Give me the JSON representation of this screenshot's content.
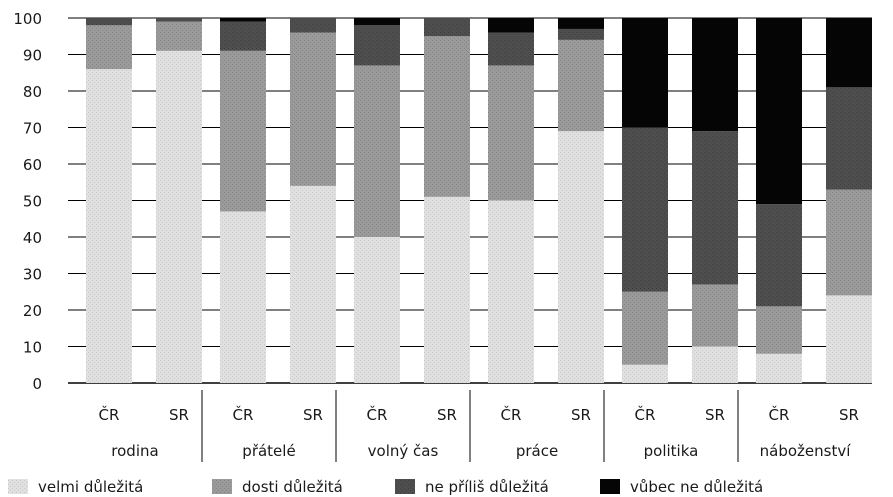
{
  "chart_data": {
    "type": "bar",
    "stacked": true,
    "ylim": [
      0,
      100
    ],
    "yticks": [
      0,
      10,
      20,
      30,
      40,
      50,
      60,
      70,
      80,
      90,
      100
    ],
    "grid": "horizontal",
    "legend_placement": "bottom",
    "groups": [
      "rodina",
      "přátelé",
      "volný čas",
      "práce",
      "politika",
      "náboženství"
    ],
    "subcategories": [
      "ČR",
      "SR"
    ],
    "series": [
      {
        "name": "velmi důležitá",
        "color": "#e0e0e0",
        "values": [
          86,
          91,
          47,
          54,
          40,
          51,
          50,
          69,
          5,
          10,
          8,
          24
        ]
      },
      {
        "name": "dosti důležitá",
        "color": "#9a9a9a",
        "values": [
          12,
          8,
          44,
          42,
          47,
          44,
          37,
          25,
          20,
          17,
          13,
          29
        ]
      },
      {
        "name": "ne příliš důležitá",
        "color": "#4e4e4e",
        "values": [
          2,
          1,
          8,
          4,
          11,
          5,
          9,
          3,
          45,
          42,
          28,
          28
        ]
      },
      {
        "name": "vůbec ne důležitá",
        "color": "#050505",
        "values": [
          0,
          0,
          1,
          0,
          2,
          0,
          4,
          3,
          30,
          31,
          51,
          19
        ]
      }
    ]
  }
}
